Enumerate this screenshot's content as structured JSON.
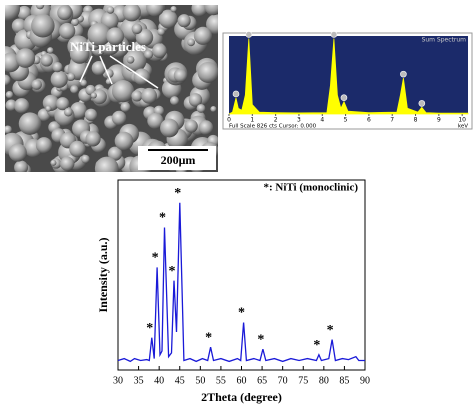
{
  "sem_image": {
    "label": "NiTi particles",
    "scale_bar": "200μm"
  },
  "chart_data": [
    {
      "type": "line",
      "legend_note": "*: NiTi (monoclinic)",
      "xlabel": "2Theta (degree)",
      "ylabel": "Intensity (a.u.)",
      "x": [
        30,
        31.5,
        33,
        34,
        35.5,
        37,
        37.6,
        38.2,
        38.8,
        39.5,
        40.2,
        40.7,
        41.3,
        42.3,
        43,
        43.6,
        44.2,
        45,
        46,
        47.5,
        49,
        50.5,
        51.8,
        52.5,
        53.2,
        55,
        57,
        59,
        59.8,
        60.5,
        61.2,
        63,
        64.5,
        65.2,
        65.9,
        68,
        70,
        72,
        74,
        76,
        78.2,
        78.8,
        79.4,
        81.2,
        82,
        82.8,
        84.5,
        86,
        87.8,
        88.5,
        90
      ],
      "values": [
        5,
        6,
        4.5,
        6,
        5,
        5.5,
        5,
        17,
        6,
        54,
        8,
        10,
        75,
        7,
        9,
        47,
        20,
        88,
        5,
        6,
        4.5,
        6,
        5,
        12,
        5,
        6,
        4.5,
        6,
        5,
        25,
        5,
        6,
        5,
        11,
        5,
        6,
        4.5,
        6,
        5,
        6,
        5,
        8,
        5,
        6,
        16,
        5,
        6,
        5.5,
        7,
        5,
        5
      ],
      "color": "#1a1ad8",
      "xlim": [
        30,
        90
      ],
      "xticks": [
        30,
        35,
        40,
        45,
        50,
        55,
        60,
        65,
        70,
        75,
        80,
        85,
        90
      ],
      "ylim": [
        0,
        100
      ],
      "annotations": [
        {
          "text": "*",
          "x": 38.2,
          "y": 17
        },
        {
          "text": "*",
          "x": 39.5,
          "y": 54
        },
        {
          "text": "*",
          "x": 41.3,
          "y": 75
        },
        {
          "text": "*",
          "x": 43.6,
          "y": 47
        },
        {
          "text": "*",
          "x": 45,
          "y": 88
        },
        {
          "text": "*",
          "x": 52.5,
          "y": 12
        },
        {
          "text": "*",
          "x": 60.5,
          "y": 25
        },
        {
          "text": "*",
          "x": 65.2,
          "y": 11
        },
        {
          "text": "*",
          "x": 78.8,
          "y": 8
        },
        {
          "text": "*",
          "x": 82,
          "y": 16
        }
      ]
    },
    {
      "type": "spectrum",
      "title": "Sum Spectrum",
      "footer": "Full Scale 826 cts Cursor: 0.000",
      "xunit": "keV",
      "x": [
        0,
        0.15,
        0.3,
        0.4,
        0.55,
        0.7,
        0.85,
        1.0,
        1.3,
        2,
        3,
        4.2,
        4.35,
        4.5,
        4.65,
        4.8,
        4.93,
        5.1,
        6,
        7.2,
        7.35,
        7.48,
        7.65,
        8.1,
        8.27,
        8.45,
        9,
        10.25
      ],
      "values": [
        0,
        20,
        170,
        60,
        40,
        200,
        800,
        100,
        20,
        15,
        12,
        15,
        300,
        800,
        200,
        60,
        130,
        30,
        15,
        20,
        200,
        380,
        60,
        20,
        70,
        15,
        10,
        8
      ],
      "color": "#ffff00",
      "background": "#1b2a6a",
      "xlim": [
        0,
        10.25
      ],
      "xticks": [
        0,
        1,
        2,
        3,
        4,
        5,
        6,
        7,
        8,
        9,
        10
      ],
      "ylim": [
        0,
        826
      ]
    }
  ]
}
